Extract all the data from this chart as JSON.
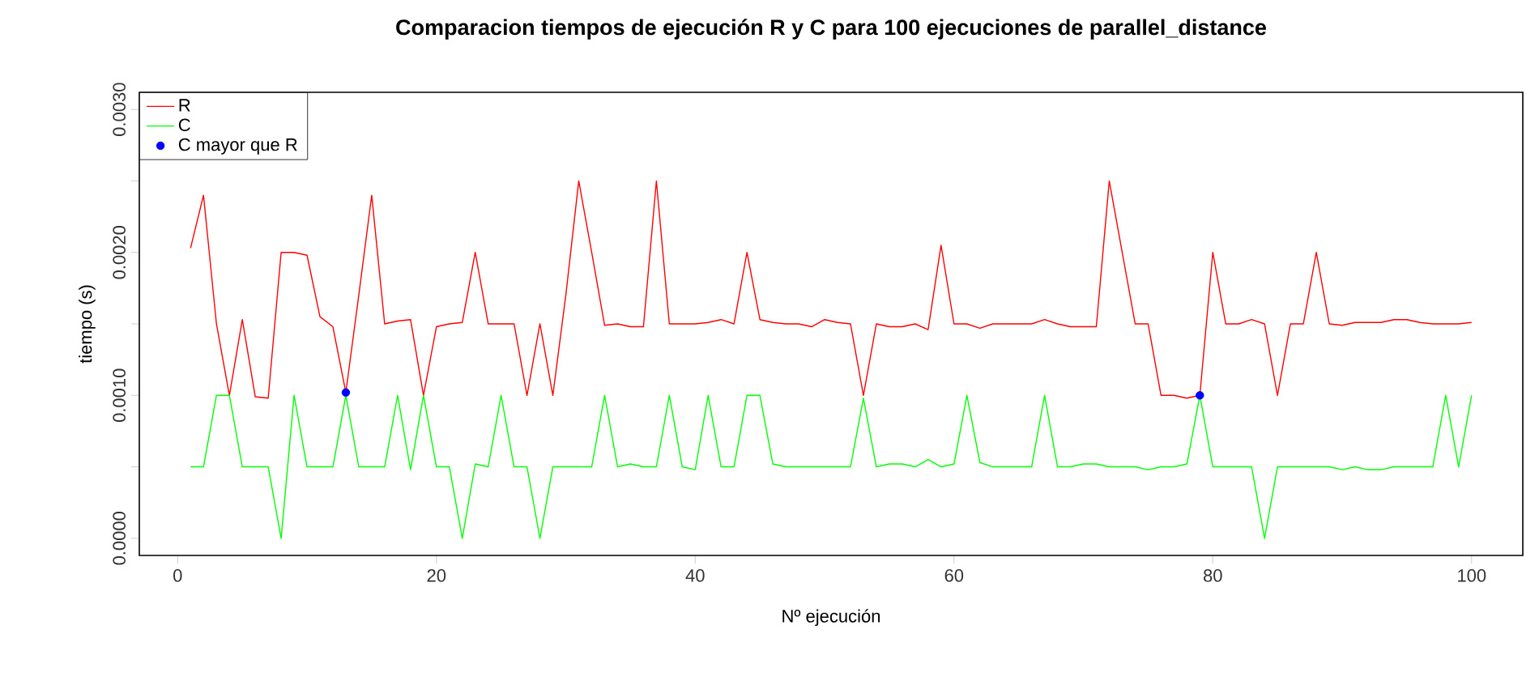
{
  "chart_data": {
    "type": "line",
    "title": "Comparacion tiempos de ejecución R y C para 100 ejecuciones de parallel_distance",
    "xlabel": "Nº ejecución",
    "ylabel": "tiempo (s)",
    "x": [
      1,
      2,
      3,
      4,
      5,
      6,
      7,
      8,
      9,
      10,
      11,
      12,
      13,
      14,
      15,
      16,
      17,
      18,
      19,
      20,
      21,
      22,
      23,
      24,
      25,
      26,
      27,
      28,
      29,
      30,
      31,
      32,
      33,
      34,
      35,
      36,
      37,
      38,
      39,
      40,
      41,
      42,
      43,
      44,
      45,
      46,
      47,
      48,
      49,
      50,
      51,
      52,
      53,
      54,
      55,
      56,
      57,
      58,
      59,
      60,
      61,
      62,
      63,
      64,
      65,
      66,
      67,
      68,
      69,
      70,
      71,
      72,
      73,
      74,
      75,
      76,
      77,
      78,
      79,
      80,
      81,
      82,
      83,
      84,
      85,
      86,
      87,
      88,
      89,
      90,
      91,
      92,
      93,
      94,
      95,
      96,
      97,
      98,
      99,
      100
    ],
    "series": [
      {
        "name": "R",
        "color": "#ff0000",
        "values": [
          0.00203,
          0.0024,
          0.0015,
          0.001,
          0.00153,
          0.00099,
          0.00098,
          0.002,
          0.002,
          0.00198,
          0.00155,
          0.00148,
          0.00102,
          0.0017,
          0.0024,
          0.0015,
          0.00152,
          0.00153,
          0.001,
          0.00148,
          0.0015,
          0.00151,
          0.002,
          0.0015,
          0.0015,
          0.0015,
          0.001,
          0.0015,
          0.001,
          0.0017,
          0.0025,
          0.002,
          0.00149,
          0.0015,
          0.00148,
          0.00148,
          0.0025,
          0.0015,
          0.0015,
          0.0015,
          0.00151,
          0.00153,
          0.0015,
          0.002,
          0.00153,
          0.00151,
          0.0015,
          0.0015,
          0.00148,
          0.00153,
          0.00151,
          0.0015,
          0.001,
          0.0015,
          0.00148,
          0.00148,
          0.0015,
          0.00146,
          0.00205,
          0.0015,
          0.0015,
          0.00147,
          0.0015,
          0.0015,
          0.0015,
          0.0015,
          0.00153,
          0.0015,
          0.00148,
          0.00148,
          0.00148,
          0.0025,
          0.002,
          0.0015,
          0.0015,
          0.001,
          0.001,
          0.00098,
          0.001,
          0.002,
          0.0015,
          0.0015,
          0.00153,
          0.0015,
          0.001,
          0.0015,
          0.0015,
          0.002,
          0.0015,
          0.00149,
          0.00151,
          0.00151,
          0.00151,
          0.00153,
          0.00153,
          0.00151,
          0.0015,
          0.0015,
          0.0015,
          0.00151
        ]
      },
      {
        "name": "C",
        "color": "#00ff00",
        "values": [
          0.0005,
          0.0005,
          0.001,
          0.001,
          0.0005,
          0.0005,
          0.0005,
          0,
          0.001,
          0.0005,
          0.0005,
          0.0005,
          0.001,
          0.0005,
          0.0005,
          0.0005,
          0.001,
          0.00048,
          0.001,
          0.0005,
          0.0005,
          0,
          0.00052,
          0.0005,
          0.001,
          0.0005,
          0.0005,
          0,
          0.0005,
          0.0005,
          0.0005,
          0.0005,
          0.001,
          0.0005,
          0.00052,
          0.0005,
          0.0005,
          0.001,
          0.0005,
          0.00048,
          0.001,
          0.0005,
          0.0005,
          0.001,
          0.001,
          0.00052,
          0.0005,
          0.0005,
          0.0005,
          0.0005,
          0.0005,
          0.0005,
          0.00098,
          0.0005,
          0.00052,
          0.00052,
          0.0005,
          0.00055,
          0.0005,
          0.00052,
          0.001,
          0.00053,
          0.0005,
          0.0005,
          0.0005,
          0.0005,
          0.001,
          0.0005,
          0.0005,
          0.00052,
          0.00052,
          0.0005,
          0.0005,
          0.0005,
          0.00048,
          0.0005,
          0.0005,
          0.00052,
          0.001,
          0.0005,
          0.0005,
          0.0005,
          0.0005,
          0,
          0.0005,
          0.0005,
          0.0005,
          0.0005,
          0.0005,
          0.00048,
          0.0005,
          0.00048,
          0.00048,
          0.0005,
          0.0005,
          0.0005,
          0.0005,
          0.001,
          0.0005,
          0.001
        ]
      },
      {
        "name": "C mayor que R",
        "type": "scatter",
        "color": "#0000ff",
        "x": [
          13,
          79
        ],
        "values": [
          0.00102,
          0.001
        ]
      }
    ],
    "xlim": [
      -2.96,
      103.96
    ],
    "ylim": [
      -0.00012,
      0.00312
    ],
    "xticks": [
      0,
      20,
      40,
      60,
      80,
      100
    ],
    "yticks": [
      {
        "value": 0,
        "label": "0.0000"
      },
      {
        "value": 0.0005,
        "label": null
      },
      {
        "value": 0.001,
        "label": "0.0010"
      },
      {
        "value": 0.0015,
        "label": null
      },
      {
        "value": 0.002,
        "label": "0.0020"
      },
      {
        "value": 0.0025,
        "label": null
      },
      {
        "value": 0.003,
        "label": "0.0030"
      }
    ],
    "legend": "top left"
  }
}
